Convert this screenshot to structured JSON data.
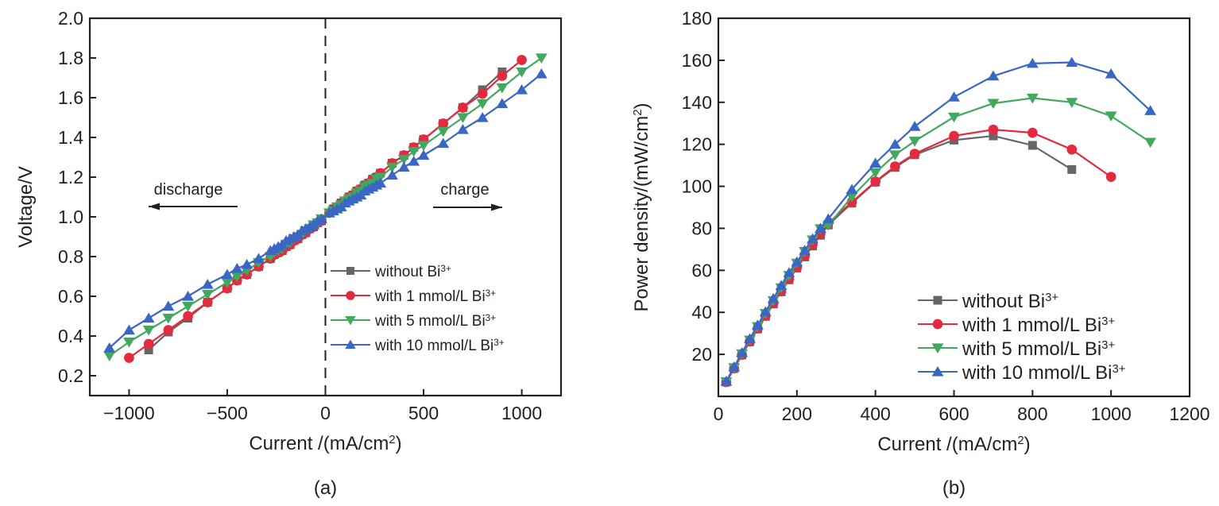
{
  "chart_data": [
    {
      "id": "a",
      "type": "line",
      "panel_label": "(a)",
      "title": "",
      "xlabel": "Current /(mA/cm",
      "xlabel_sup": "2",
      "xlabel_end": ")",
      "ylabel": "Voltage/V",
      "xlim": [
        -1200,
        1200
      ],
      "ylim": [
        0.1,
        2.0
      ],
      "xticks": [
        -1000,
        -500,
        0,
        500,
        1000
      ],
      "xtick_labels": [
        "−1000",
        "−500",
        "0",
        "500",
        "1000"
      ],
      "yticks": [
        0.2,
        0.4,
        0.6,
        0.8,
        1.0,
        1.2,
        1.4,
        1.6,
        1.8,
        2.0
      ],
      "ytick_labels": [
        "0.2",
        "0.4",
        "0.6",
        "0.8",
        "1.0",
        "1.2",
        "1.4",
        "1.6",
        "1.8",
        "2.0"
      ],
      "grid": false,
      "reference_line": {
        "x": 0,
        "style": "dashed"
      },
      "annotations": [
        {
          "text": "discharge",
          "arrow": "left"
        },
        {
          "text": "charge",
          "arrow": "right"
        }
      ],
      "legend_position": "lower-right",
      "series": [
        {
          "name": "without Bi",
          "sup": "3+",
          "color": "#666666",
          "marker": "square",
          "x": [
            -900,
            -800,
            -700,
            -600,
            -500,
            -450,
            -400,
            -340,
            -280,
            -260,
            -240,
            -220,
            -200,
            -180,
            -160,
            -140,
            -120,
            -100,
            -80,
            -60,
            -40,
            -20,
            20,
            40,
            60,
            80,
            100,
            120,
            140,
            160,
            180,
            200,
            220,
            240,
            260,
            280,
            340,
            400,
            450,
            500,
            600,
            700,
            800,
            900
          ],
          "y": [
            0.33,
            0.42,
            0.49,
            0.57,
            0.64,
            0.68,
            0.71,
            0.75,
            0.79,
            0.81,
            0.82,
            0.83,
            0.85,
            0.86,
            0.88,
            0.89,
            0.91,
            0.92,
            0.94,
            0.95,
            0.97,
            0.98,
            1.02,
            1.04,
            1.05,
            1.07,
            1.08,
            1.1,
            1.11,
            1.13,
            1.14,
            1.16,
            1.17,
            1.19,
            1.2,
            1.22,
            1.27,
            1.31,
            1.35,
            1.39,
            1.47,
            1.55,
            1.64,
            1.73
          ]
        },
        {
          "name": "with 1 mmol/L Bi",
          "sup": "3+",
          "color": "#e32a3e",
          "marker": "circle",
          "x": [
            -1000,
            -900,
            -800,
            -700,
            -600,
            -500,
            -450,
            -400,
            -340,
            -280,
            -260,
            -240,
            -220,
            -200,
            -180,
            -160,
            -140,
            -120,
            -100,
            -80,
            -60,
            -40,
            -20,
            20,
            40,
            60,
            80,
            100,
            120,
            140,
            160,
            180,
            200,
            220,
            240,
            260,
            280,
            340,
            400,
            450,
            500,
            600,
            700,
            800,
            900,
            1000
          ],
          "y": [
            0.29,
            0.36,
            0.43,
            0.5,
            0.57,
            0.64,
            0.68,
            0.71,
            0.75,
            0.79,
            0.81,
            0.82,
            0.83,
            0.85,
            0.86,
            0.88,
            0.89,
            0.91,
            0.92,
            0.94,
            0.95,
            0.97,
            0.98,
            1.02,
            1.04,
            1.05,
            1.07,
            1.08,
            1.1,
            1.11,
            1.13,
            1.14,
            1.16,
            1.17,
            1.19,
            1.2,
            1.22,
            1.27,
            1.31,
            1.35,
            1.39,
            1.47,
            1.55,
            1.62,
            1.71,
            1.79
          ]
        },
        {
          "name": "with 5 mmol/L Bi",
          "sup": "3+",
          "color": "#41a85f",
          "marker": "triangle-down",
          "x": [
            -1100,
            -1000,
            -900,
            -800,
            -700,
            -600,
            -500,
            -450,
            -400,
            -340,
            -280,
            -260,
            -240,
            -220,
            -200,
            -180,
            -160,
            -140,
            -120,
            -100,
            -80,
            -60,
            -40,
            -20,
            20,
            40,
            60,
            80,
            100,
            120,
            140,
            160,
            180,
            200,
            220,
            240,
            260,
            280,
            340,
            400,
            450,
            500,
            600,
            700,
            800,
            900,
            1000,
            1100
          ],
          "y": [
            0.3,
            0.37,
            0.43,
            0.49,
            0.55,
            0.61,
            0.67,
            0.7,
            0.73,
            0.77,
            0.8,
            0.82,
            0.83,
            0.84,
            0.86,
            0.87,
            0.89,
            0.9,
            0.91,
            0.93,
            0.94,
            0.96,
            0.97,
            0.99,
            1.02,
            1.03,
            1.05,
            1.06,
            1.08,
            1.09,
            1.1,
            1.12,
            1.13,
            1.15,
            1.16,
            1.17,
            1.19,
            1.2,
            1.25,
            1.29,
            1.33,
            1.36,
            1.43,
            1.5,
            1.57,
            1.65,
            1.73,
            1.8
          ]
        },
        {
          "name": "with 10 mmol/L Bi",
          "sup": "3+",
          "color": "#3a66c4",
          "marker": "triangle-up",
          "x": [
            -1100,
            -1000,
            -900,
            -800,
            -700,
            -600,
            -500,
            -450,
            -400,
            -340,
            -280,
            -260,
            -240,
            -220,
            -200,
            -180,
            -160,
            -140,
            -120,
            -100,
            -80,
            -60,
            -40,
            -20,
            20,
            40,
            60,
            80,
            100,
            120,
            140,
            160,
            180,
            200,
            220,
            240,
            260,
            280,
            340,
            400,
            450,
            500,
            600,
            700,
            800,
            900,
            1000,
            1100
          ],
          "y": [
            0.34,
            0.43,
            0.49,
            0.55,
            0.6,
            0.66,
            0.71,
            0.74,
            0.76,
            0.79,
            0.83,
            0.84,
            0.85,
            0.86,
            0.88,
            0.89,
            0.9,
            0.91,
            0.93,
            0.94,
            0.95,
            0.96,
            0.98,
            0.99,
            1.02,
            1.03,
            1.04,
            1.05,
            1.07,
            1.08,
            1.09,
            1.1,
            1.11,
            1.13,
            1.14,
            1.15,
            1.16,
            1.17,
            1.21,
            1.25,
            1.28,
            1.31,
            1.37,
            1.44,
            1.5,
            1.57,
            1.64,
            1.72
          ]
        }
      ]
    },
    {
      "id": "b",
      "type": "line",
      "panel_label": "(b)",
      "title": "",
      "xlabel": "Current /(mA/cm",
      "xlabel_sup": "2",
      "xlabel_end": ")",
      "ylabel": "Power density/(mW/cm",
      "ylabel_sup": "2",
      "ylabel_end": ")",
      "xlim": [
        0,
        1200
      ],
      "ylim": [
        0,
        180
      ],
      "xticks": [
        0,
        200,
        400,
        600,
        800,
        1000,
        1200
      ],
      "xtick_labels": [
        "0",
        "200",
        "400",
        "600",
        "800",
        "1000",
        "1200"
      ],
      "yticks": [
        20,
        40,
        60,
        80,
        100,
        120,
        140,
        160,
        180
      ],
      "ytick_labels": [
        "20",
        "40",
        "60",
        "80",
        "100",
        "120",
        "140",
        "160",
        "180"
      ],
      "grid": false,
      "legend_position": "lower-right",
      "series": [
        {
          "name": "without Bi",
          "sup": "3+",
          "color": "#666666",
          "marker": "square",
          "x": [
            20,
            40,
            60,
            80,
            100,
            120,
            140,
            160,
            180,
            200,
            220,
            240,
            260,
            280,
            340,
            400,
            450,
            500,
            600,
            700,
            800,
            900
          ],
          "y": [
            6.8,
            13.3,
            19.7,
            26.0,
            32.1,
            38.1,
            44.0,
            49.8,
            55.5,
            61.1,
            66.4,
            71.6,
            76.7,
            81.6,
            92.0,
            102.0,
            109.0,
            115.0,
            122.0,
            124.0,
            119.5,
            108.0
          ]
        },
        {
          "name": "with 1 mmol/L Bi",
          "sup": "3+",
          "color": "#e32a3e",
          "marker": "circle",
          "x": [
            20,
            40,
            60,
            80,
            100,
            120,
            140,
            160,
            180,
            200,
            220,
            240,
            260,
            280,
            340,
            400,
            450,
            500,
            600,
            700,
            800,
            900,
            1000
          ],
          "y": [
            6.8,
            13.3,
            19.8,
            26.1,
            32.3,
            38.4,
            44.3,
            50.1,
            55.9,
            61.5,
            67.0,
            72.3,
            77.5,
            82.5,
            92.5,
            102.3,
            109.5,
            115.5,
            124.0,
            127.0,
            125.5,
            117.5,
            104.5
          ]
        },
        {
          "name": "with 5 mmol/L Bi",
          "sup": "3+",
          "color": "#41a85f",
          "marker": "triangle-down",
          "x": [
            20,
            40,
            60,
            80,
            100,
            120,
            140,
            160,
            180,
            200,
            220,
            240,
            260,
            280,
            340,
            400,
            450,
            500,
            600,
            700,
            800,
            900,
            1000,
            1100
          ],
          "y": [
            7.0,
            13.7,
            20.3,
            26.8,
            33.2,
            39.5,
            45.6,
            51.7,
            57.6,
            63.4,
            69.0,
            74.5,
            79.8,
            81.5,
            95.0,
            106.5,
            115.0,
            121.5,
            133.0,
            139.5,
            142.0,
            140.0,
            133.5,
            121.0
          ]
        },
        {
          "name": "with 10 mmol/L Bi",
          "sup": "3+",
          "color": "#3a66c4",
          "marker": "triangle-up",
          "x": [
            20,
            40,
            60,
            80,
            100,
            120,
            140,
            160,
            180,
            200,
            220,
            240,
            260,
            280,
            340,
            400,
            450,
            500,
            600,
            700,
            800,
            900,
            1000,
            1100
          ],
          "y": [
            7.2,
            14.0,
            20.8,
            27.4,
            33.9,
            40.3,
            46.6,
            52.8,
            58.9,
            64.0,
            69.5,
            75.0,
            80.0,
            84.5,
            98.5,
            111.0,
            120.0,
            128.5,
            142.5,
            152.5,
            158.5,
            159.0,
            153.5,
            136.0
          ]
        }
      ]
    }
  ]
}
